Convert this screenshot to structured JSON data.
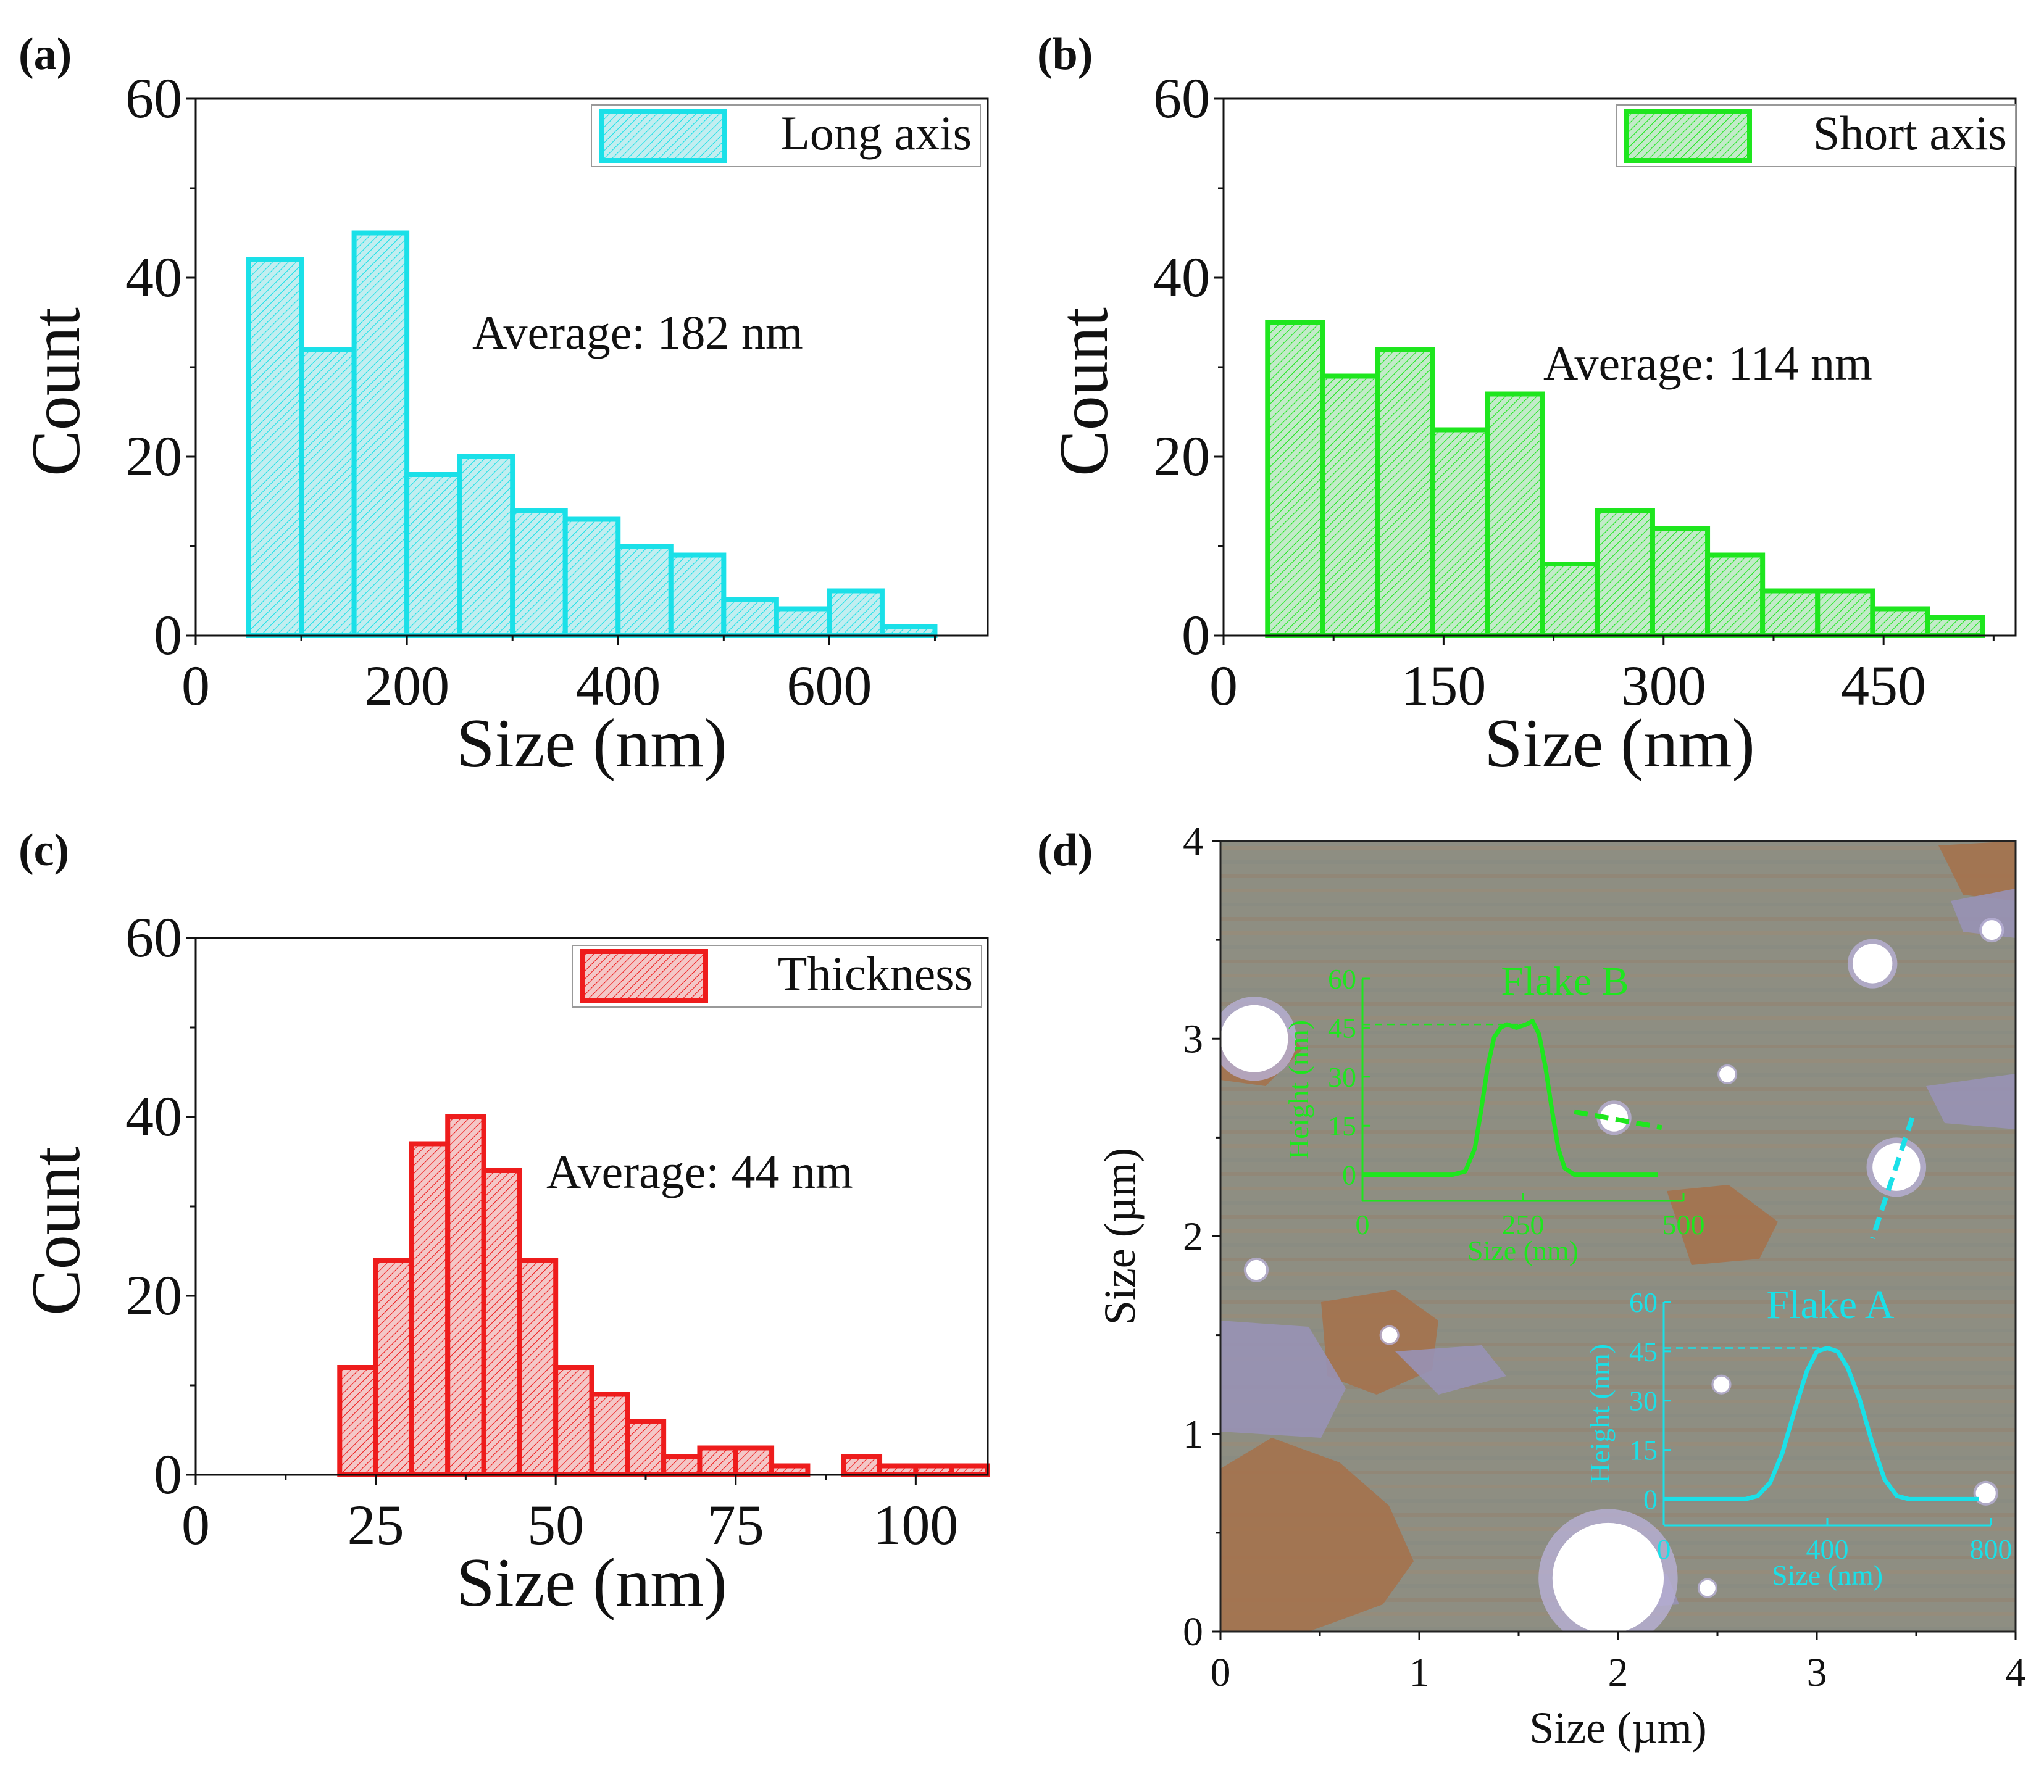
{
  "chart_data": [
    {
      "panel_label": "(a)",
      "type": "bar",
      "subtype": "histogram",
      "xlabel": "Size (nm)",
      "ylabel": "Count",
      "xlim": [
        0,
        750
      ],
      "ylim": [
        0,
        60
      ],
      "xticks": [
        "0",
        "200",
        "400",
        "600"
      ],
      "xtick_values": [
        0,
        200,
        400,
        600
      ],
      "yticks": [
        "0",
        "20",
        "40",
        "60"
      ],
      "ytick_values": [
        0,
        20,
        40,
        60
      ],
      "bin_width": 50,
      "bins": [
        [
          50,
          42
        ],
        [
          100,
          32
        ],
        [
          150,
          45
        ],
        [
          200,
          18
        ],
        [
          250,
          20
        ],
        [
          300,
          14
        ],
        [
          350,
          13
        ],
        [
          400,
          10
        ],
        [
          450,
          9
        ],
        [
          500,
          4
        ],
        [
          550,
          3
        ],
        [
          600,
          5
        ],
        [
          650,
          1
        ]
      ],
      "legend": "Long axis",
      "annotation": "Average: 182 nm",
      "color": "#1ae0e8",
      "fill": "#c2eef0"
    },
    {
      "panel_label": "(b)",
      "type": "bar",
      "subtype": "histogram",
      "xlabel": "Size (nm)",
      "ylabel": "Count",
      "xlim": [
        0,
        540
      ],
      "ylim": [
        0,
        60
      ],
      "xticks": [
        "0",
        "150",
        "300",
        "450"
      ],
      "xtick_values": [
        0,
        150,
        300,
        450
      ],
      "yticks": [
        "0",
        "20",
        "40",
        "60"
      ],
      "ytick_values": [
        0,
        20,
        40,
        60
      ],
      "bin_width": 37.5,
      "bins": [
        [
          30,
          35
        ],
        [
          67.5,
          29
        ],
        [
          105,
          32
        ],
        [
          142.5,
          23
        ],
        [
          180,
          27
        ],
        [
          217.5,
          8
        ],
        [
          255,
          14
        ],
        [
          292.5,
          12
        ],
        [
          330,
          9
        ],
        [
          367.5,
          5
        ],
        [
          405,
          5
        ],
        [
          442.5,
          3
        ],
        [
          480,
          2
        ]
      ],
      "legend": "Short axis",
      "annotation": "Average: 114 nm",
      "color": "#1ee61e",
      "fill": "#c3ebc9"
    },
    {
      "panel_label": "(c)",
      "type": "bar",
      "subtype": "histogram",
      "xlabel": "Size (nm)",
      "ylabel": "Count",
      "xlim": [
        0,
        110
      ],
      "ylim": [
        0,
        60
      ],
      "xticks": [
        "0",
        "25",
        "50",
        "75",
        "100"
      ],
      "xtick_values": [
        0,
        25,
        50,
        75,
        100
      ],
      "yticks": [
        "0",
        "20",
        "40",
        "60"
      ],
      "ytick_values": [
        0,
        20,
        40,
        60
      ],
      "bin_width": 5,
      "bins": [
        [
          20,
          12
        ],
        [
          25,
          24
        ],
        [
          30,
          37
        ],
        [
          35,
          40
        ],
        [
          40,
          34
        ],
        [
          45,
          24
        ],
        [
          50,
          12
        ],
        [
          55,
          9
        ],
        [
          60,
          6
        ],
        [
          65,
          2
        ],
        [
          70,
          3
        ],
        [
          75,
          3
        ],
        [
          80,
          1
        ],
        [
          85,
          0
        ],
        [
          90,
          2
        ],
        [
          95,
          1
        ],
        [
          100,
          1
        ],
        [
          105,
          1
        ]
      ],
      "legend": "Thickness",
      "annotation": "Average: 44 nm",
      "color": "#ee1c1c",
      "fill": "#f4c7c7"
    },
    {
      "panel_label": "(d)",
      "type": "image",
      "subtype": "AFM height map",
      "xlabel": "Size (µm)",
      "ylabel": "Size (µm)",
      "xlim": [
        0,
        4
      ],
      "ylim": [
        0,
        4
      ],
      "xticks": [
        "0",
        "1",
        "2",
        "3",
        "4"
      ],
      "xtick_values": [
        0,
        1,
        2,
        3,
        4
      ],
      "yticks": [
        "0",
        "1",
        "2",
        "3",
        "4"
      ],
      "ytick_values": [
        0,
        1,
        2,
        3,
        4
      ],
      "colors": {
        "substrate": "#8e8e82",
        "terrace": "#a6714a",
        "stripe": "#9892b5",
        "flake": "#ffffff"
      },
      "flakes": [
        {
          "x": 0.17,
          "y": 3.0,
          "r": 0.17
        },
        {
          "x": 3.28,
          "y": 3.38,
          "r": 0.1
        },
        {
          "x": 1.98,
          "y": 2.6,
          "r": 0.07
        },
        {
          "x": 3.4,
          "y": 2.35,
          "r": 0.12
        },
        {
          "x": 1.95,
          "y": 0.27,
          "r": 0.28
        },
        {
          "x": 0.18,
          "y": 1.83,
          "r": 0.05
        },
        {
          "x": 2.55,
          "y": 2.82,
          "r": 0.04
        },
        {
          "x": 0.85,
          "y": 1.5,
          "r": 0.04
        },
        {
          "x": 2.52,
          "y": 1.25,
          "r": 0.04
        },
        {
          "x": 3.85,
          "y": 0.7,
          "r": 0.05
        },
        {
          "x": 3.88,
          "y": 3.55,
          "r": 0.05
        },
        {
          "x": 2.45,
          "y": 0.22,
          "r": 0.04
        }
      ],
      "profile_lines": [
        {
          "flake": "Flake B",
          "color": "#1ee61e",
          "x1": 1.78,
          "y1": 2.63,
          "x2": 2.22,
          "y2": 2.55
        },
        {
          "flake": "Flake A",
          "color": "#1ae0e8",
          "x1": 3.48,
          "y1": 2.6,
          "x2": 3.28,
          "y2": 1.99
        }
      ],
      "insets": [
        {
          "title": "Flake B",
          "color": "#1ee61e",
          "xlabel": "Size (nm)",
          "ylabel": "Height (nm)",
          "xlim": [
            0,
            500
          ],
          "ylim": [
            -8,
            60
          ],
          "xticks": [
            "0",
            "250",
            "500"
          ],
          "xtick_values": [
            0,
            250,
            500
          ],
          "yticks": [
            "0",
            "15",
            "30",
            "45",
            "60"
          ],
          "ytick_values": [
            0,
            15,
            30,
            45,
            60
          ],
          "reference_height": 46,
          "profile": [
            [
              0,
              0
            ],
            [
              60,
              0
            ],
            [
              100,
              0
            ],
            [
              140,
              0
            ],
            [
              160,
              1
            ],
            [
              175,
              8
            ],
            [
              185,
              20
            ],
            [
              195,
              33
            ],
            [
              205,
              42
            ],
            [
              215,
              45
            ],
            [
              225,
              46
            ],
            [
              240,
              45
            ],
            [
              255,
              46
            ],
            [
              265,
              47
            ],
            [
              275,
              43
            ],
            [
              285,
              33
            ],
            [
              295,
              20
            ],
            [
              305,
              8
            ],
            [
              315,
              2
            ],
            [
              330,
              0
            ],
            [
              380,
              0
            ],
            [
              430,
              0
            ],
            [
              460,
              0
            ]
          ]
        },
        {
          "title": "Flake A",
          "color": "#1ae0e8",
          "xlabel": "Size (nm)",
          "ylabel": "Height (nm)",
          "xlim": [
            0,
            800
          ],
          "ylim": [
            -8,
            60
          ],
          "xticks": [
            "0",
            "400",
            "800"
          ],
          "xtick_values": [
            0,
            400,
            800
          ],
          "yticks": [
            "0",
            "15",
            "30",
            "45",
            "60"
          ],
          "ytick_values": [
            0,
            15,
            30,
            45,
            60
          ],
          "reference_height": 46,
          "profile": [
            [
              0,
              0
            ],
            [
              100,
              0
            ],
            [
              200,
              0
            ],
            [
              230,
              1
            ],
            [
              260,
              5
            ],
            [
              290,
              14
            ],
            [
              320,
              27
            ],
            [
              350,
              39
            ],
            [
              375,
              45
            ],
            [
              400,
              46
            ],
            [
              425,
              45
            ],
            [
              450,
              40
            ],
            [
              480,
              30
            ],
            [
              510,
              17
            ],
            [
              540,
              6
            ],
            [
              570,
              1
            ],
            [
              600,
              0
            ],
            [
              700,
              0
            ],
            [
              770,
              0
            ]
          ]
        }
      ]
    }
  ]
}
